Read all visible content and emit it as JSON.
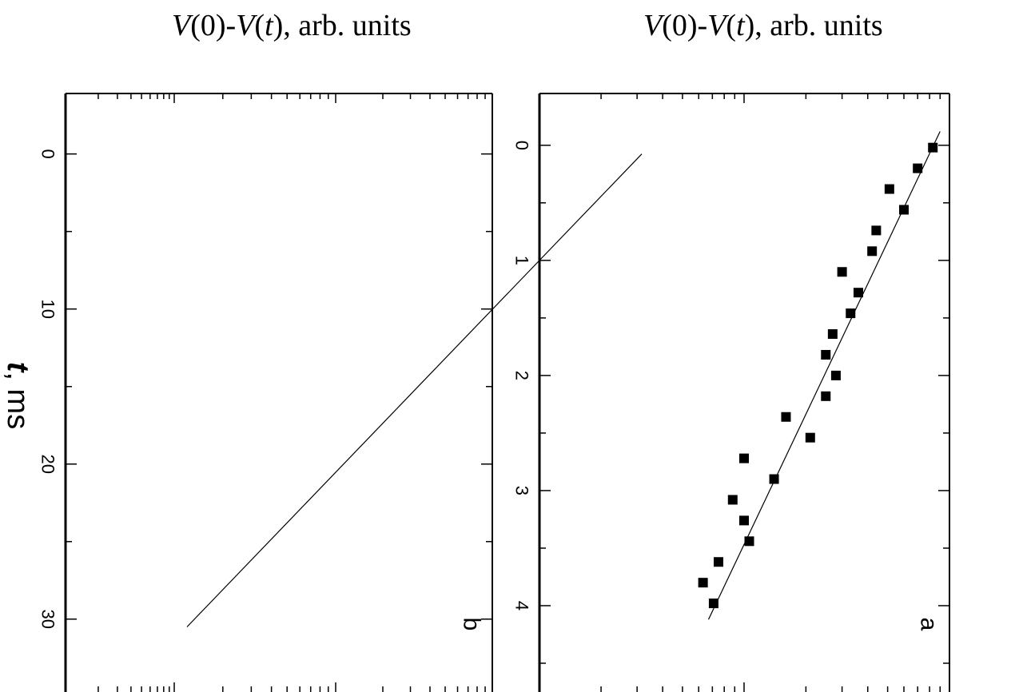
{
  "figure": {
    "top_label_b": "V(0)-V(t), arb. units",
    "top_label_a": "V(0)-V(t), arb. units",
    "time_axis_label": "t, ms"
  },
  "chart_data": [
    {
      "panel": "a",
      "type": "scatter",
      "xlabel": "V(0)-V(t), arb. units",
      "ylabel": "t, ms",
      "ylim": [
        -0.45,
        4.75
      ],
      "yticks": [
        0,
        1,
        2,
        3,
        4
      ],
      "x_scale": "log",
      "grid": false,
      "points": [
        {
          "t": 0.02,
          "v": 0.83
        },
        {
          "t": 0.2,
          "v": 0.7
        },
        {
          "t": 0.38,
          "v": 0.51
        },
        {
          "t": 0.56,
          "v": 0.6
        },
        {
          "t": 0.74,
          "v": 0.44
        },
        {
          "t": 0.92,
          "v": 0.42
        },
        {
          "t": 1.1,
          "v": 0.3
        },
        {
          "t": 1.28,
          "v": 0.36
        },
        {
          "t": 1.46,
          "v": 0.33
        },
        {
          "t": 1.64,
          "v": 0.27
        },
        {
          "t": 1.82,
          "v": 0.25
        },
        {
          "t": 2.0,
          "v": 0.28
        },
        {
          "t": 2.18,
          "v": 0.25
        },
        {
          "t": 2.36,
          "v": 0.16
        },
        {
          "t": 2.54,
          "v": 0.21
        },
        {
          "t": 2.72,
          "v": 0.1
        },
        {
          "t": 2.9,
          "v": 0.14
        },
        {
          "t": 3.08,
          "v": 0.088
        },
        {
          "t": 3.26,
          "v": 0.1
        },
        {
          "t": 3.44,
          "v": 0.106
        },
        {
          "t": 3.62,
          "v": 0.075
        },
        {
          "t": 3.8,
          "v": 0.063
        },
        {
          "t": 3.98,
          "v": 0.071
        }
      ],
      "fit_line": {
        "t": [
          -0.12,
          4.12
        ],
        "v": [
          0.9,
          0.067
        ]
      },
      "panel_label": "a"
    },
    {
      "panel": "b",
      "type": "line",
      "xlabel": "V(0)-V(t), arb. units",
      "ylabel": "t, ms",
      "ylim": [
        -3.9,
        34.7
      ],
      "yticks": [
        0,
        10,
        20,
        30
      ],
      "x_scale": "log",
      "grid": false,
      "fit_line": {
        "t": [
          0,
          30.5
        ],
        "v": [
          0.9,
          0.0012
        ]
      },
      "panel_label": "b"
    }
  ]
}
